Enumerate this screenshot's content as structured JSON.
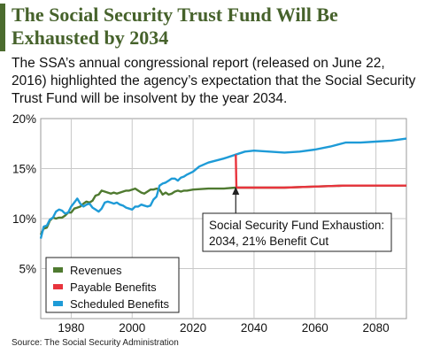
{
  "header": {
    "title": "The Social Security Trust Fund Will Be Exhausted by 2034",
    "subtitle": "The SSA’s annual congressional report (released on June 22, 2016) highlighted the agency’s expectation that the Social Security Trust Fund will be insolvent by the year 2034."
  },
  "source": "Source: The Social Security Administration",
  "colors": {
    "revenues": "#4f7a30",
    "payable": "#e8343d",
    "scheduled": "#1e9bd7",
    "title": "#46622b"
  },
  "chart_data": {
    "type": "line",
    "xlim": [
      1970,
      2090
    ],
    "ylim": [
      0,
      20
    ],
    "x_ticks": [
      1980,
      2000,
      2020,
      2040,
      2060,
      2080
    ],
    "y_ticks": [
      5,
      10,
      15,
      20
    ],
    "x_tick_labels": [
      "1980",
      "2000",
      "2020",
      "2040",
      "2060",
      "2080"
    ],
    "y_tick_labels": [
      "5%",
      "10%",
      "15%",
      "20%"
    ],
    "grid": true,
    "legend_position": "bottom-left",
    "annotation": {
      "line1": "Social Security Fund Exhaustion:",
      "line2": "2034, 21% Benefit Cut",
      "x": 2034,
      "y": 13.1
    },
    "series": [
      {
        "name": "Revenues",
        "color": "#4f7a30",
        "points": [
          [
            1970,
            8.4
          ],
          [
            1971,
            9.0
          ],
          [
            1972,
            9.1
          ],
          [
            1973,
            9.8
          ],
          [
            1974,
            10.1
          ],
          [
            1975,
            10.0
          ],
          [
            1976,
            10.1
          ],
          [
            1977,
            10.1
          ],
          [
            1978,
            10.3
          ],
          [
            1979,
            10.6
          ],
          [
            1980,
            10.6
          ],
          [
            1981,
            11.0
          ],
          [
            1982,
            11.1
          ],
          [
            1983,
            11.2
          ],
          [
            1984,
            11.5
          ],
          [
            1985,
            11.7
          ],
          [
            1986,
            11.6
          ],
          [
            1987,
            11.8
          ],
          [
            1988,
            12.3
          ],
          [
            1989,
            12.4
          ],
          [
            1990,
            12.8
          ],
          [
            1991,
            12.7
          ],
          [
            1992,
            12.6
          ],
          [
            1993,
            12.5
          ],
          [
            1994,
            12.6
          ],
          [
            1995,
            12.5
          ],
          [
            1996,
            12.6
          ],
          [
            1997,
            12.7
          ],
          [
            1998,
            12.8
          ],
          [
            1999,
            12.8
          ],
          [
            2000,
            12.9
          ],
          [
            2001,
            13.0
          ],
          [
            2002,
            12.8
          ],
          [
            2003,
            12.6
          ],
          [
            2004,
            12.5
          ],
          [
            2005,
            12.7
          ],
          [
            2006,
            12.9
          ],
          [
            2007,
            12.9
          ],
          [
            2008,
            13.0
          ],
          [
            2009,
            12.9
          ],
          [
            2010,
            12.4
          ],
          [
            2011,
            12.6
          ],
          [
            2012,
            12.4
          ],
          [
            2013,
            12.5
          ],
          [
            2014,
            12.7
          ],
          [
            2015,
            12.8
          ],
          [
            2016,
            12.7
          ],
          [
            2017,
            12.8
          ],
          [
            2018,
            12.8
          ],
          [
            2020,
            12.9
          ],
          [
            2025,
            13.0
          ],
          [
            2030,
            13.0
          ],
          [
            2034,
            13.1
          ],
          [
            2040,
            13.1
          ],
          [
            2050,
            13.1
          ],
          [
            2060,
            13.2
          ],
          [
            2070,
            13.3
          ],
          [
            2080,
            13.3
          ],
          [
            2090,
            13.3
          ]
        ]
      },
      {
        "name": "Payable Benefits",
        "color": "#e8343d",
        "points": [
          [
            2034,
            16.4
          ],
          [
            2034.2,
            13.1
          ],
          [
            2040,
            13.1
          ],
          [
            2050,
            13.1
          ],
          [
            2060,
            13.2
          ],
          [
            2070,
            13.3
          ],
          [
            2080,
            13.3
          ],
          [
            2090,
            13.3
          ]
        ]
      },
      {
        "name": "Scheduled Benefits",
        "color": "#1e9bd7",
        "points": [
          [
            1970,
            8.0
          ],
          [
            1971,
            9.2
          ],
          [
            1972,
            9.3
          ],
          [
            1973,
            9.9
          ],
          [
            1974,
            10.1
          ],
          [
            1975,
            10.7
          ],
          [
            1976,
            10.9
          ],
          [
            1977,
            10.8
          ],
          [
            1978,
            10.5
          ],
          [
            1979,
            10.6
          ],
          [
            1980,
            11.2
          ],
          [
            1981,
            11.6
          ],
          [
            1982,
            12.0
          ],
          [
            1983,
            11.5
          ],
          [
            1984,
            11.2
          ],
          [
            1985,
            11.4
          ],
          [
            1986,
            11.5
          ],
          [
            1987,
            11.1
          ],
          [
            1988,
            10.9
          ],
          [
            1989,
            10.7
          ],
          [
            1990,
            11.0
          ],
          [
            1991,
            11.6
          ],
          [
            1992,
            11.7
          ],
          [
            1993,
            11.6
          ],
          [
            1994,
            11.5
          ],
          [
            1995,
            11.6
          ],
          [
            1996,
            11.4
          ],
          [
            1997,
            11.3
          ],
          [
            1998,
            11.1
          ],
          [
            1999,
            11.0
          ],
          [
            2000,
            10.9
          ],
          [
            2001,
            11.2
          ],
          [
            2002,
            11.2
          ],
          [
            2003,
            11.4
          ],
          [
            2004,
            11.3
          ],
          [
            2005,
            11.2
          ],
          [
            2006,
            11.3
          ],
          [
            2007,
            11.9
          ],
          [
            2008,
            12.2
          ],
          [
            2009,
            13.3
          ],
          [
            2010,
            13.5
          ],
          [
            2011,
            13.6
          ],
          [
            2012,
            13.8
          ],
          [
            2013,
            14.0
          ],
          [
            2014,
            14.0
          ],
          [
            2015,
            13.8
          ],
          [
            2016,
            14.1
          ],
          [
            2017,
            14.2
          ],
          [
            2018,
            14.4
          ],
          [
            2020,
            14.7
          ],
          [
            2022,
            15.2
          ],
          [
            2025,
            15.6
          ],
          [
            2030,
            16.0
          ],
          [
            2034,
            16.4
          ],
          [
            2037,
            16.7
          ],
          [
            2040,
            16.8
          ],
          [
            2045,
            16.7
          ],
          [
            2050,
            16.6
          ],
          [
            2055,
            16.7
          ],
          [
            2060,
            16.9
          ],
          [
            2065,
            17.2
          ],
          [
            2070,
            17.6
          ],
          [
            2075,
            17.6
          ],
          [
            2080,
            17.7
          ],
          [
            2085,
            17.8
          ],
          [
            2090,
            18.0
          ]
        ]
      }
    ]
  }
}
